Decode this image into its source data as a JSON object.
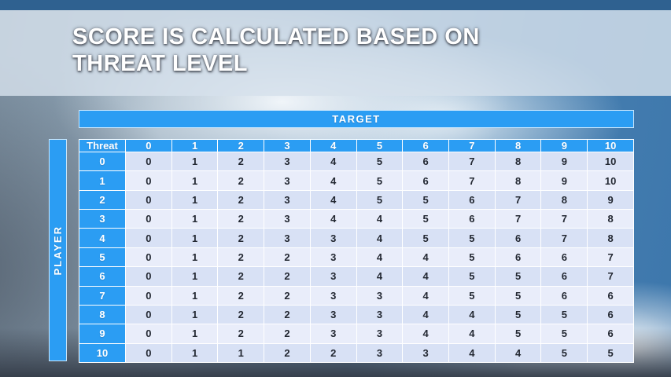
{
  "slide": {
    "title_line1": "SCORE IS CALCULATED BASED ON",
    "title_line2": "THREAT LEVEL"
  },
  "table": {
    "target_label": "TARGET",
    "player_label": "PLAYER",
    "corner_label": "Threat",
    "column_headers": [
      "0",
      "1",
      "2",
      "3",
      "4",
      "5",
      "6",
      "7",
      "8",
      "9",
      "10"
    ],
    "rows": [
      {
        "header": "0",
        "values": [
          0,
          1,
          2,
          3,
          4,
          5,
          6,
          7,
          8,
          9,
          10
        ]
      },
      {
        "header": "1",
        "values": [
          0,
          1,
          2,
          3,
          4,
          5,
          6,
          7,
          8,
          9,
          10
        ]
      },
      {
        "header": "2",
        "values": [
          0,
          1,
          2,
          3,
          4,
          5,
          5,
          6,
          7,
          8,
          9
        ]
      },
      {
        "header": "3",
        "values": [
          0,
          1,
          2,
          3,
          4,
          4,
          5,
          6,
          7,
          7,
          8
        ]
      },
      {
        "header": "4",
        "values": [
          0,
          1,
          2,
          3,
          3,
          4,
          5,
          5,
          6,
          7,
          8
        ]
      },
      {
        "header": "5",
        "values": [
          0,
          1,
          2,
          2,
          3,
          4,
          4,
          5,
          6,
          6,
          7
        ]
      },
      {
        "header": "6",
        "values": [
          0,
          1,
          2,
          2,
          3,
          4,
          4,
          5,
          5,
          6,
          7
        ]
      },
      {
        "header": "7",
        "values": [
          0,
          1,
          2,
          2,
          3,
          3,
          4,
          5,
          5,
          6,
          6
        ]
      },
      {
        "header": "8",
        "values": [
          0,
          1,
          2,
          2,
          3,
          3,
          4,
          4,
          5,
          5,
          6
        ]
      },
      {
        "header": "9",
        "values": [
          0,
          1,
          2,
          2,
          3,
          3,
          4,
          4,
          5,
          5,
          6
        ]
      },
      {
        "header": "10",
        "values": [
          0,
          1,
          1,
          2,
          2,
          3,
          3,
          4,
          4,
          5,
          5
        ]
      }
    ]
  },
  "colors": {
    "header_blue": "#2b9df3",
    "row_even": "#d8e1f5",
    "row_odd": "#e9edfa",
    "top_strip": "#2f6190",
    "title_text": "#ffffff"
  }
}
